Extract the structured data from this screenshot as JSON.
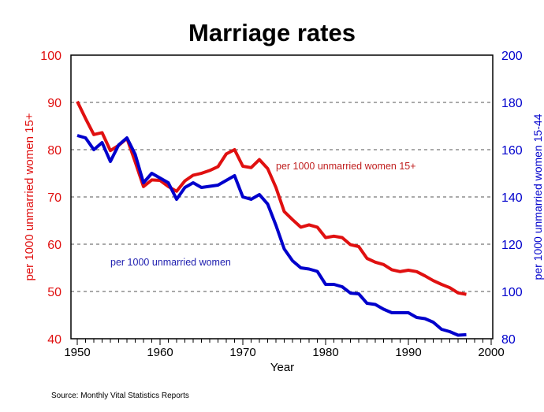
{
  "chart_data": {
    "type": "line",
    "title": "Marriage rates",
    "xlabel": "Year",
    "ylabel_left": "per 1000 unmarried women 15+",
    "ylabel_right": "per 1000 unmarried women 15-44",
    "source": "Source: Monthly Vital Statistics Reports",
    "xlim": [
      1950,
      2000
    ],
    "ylim_left": [
      40,
      100
    ],
    "ylim_right": [
      80,
      200
    ],
    "x_ticks": [
      1950,
      1960,
      1970,
      1980,
      1990,
      2000
    ],
    "y_ticks_left": [
      40,
      50,
      60,
      70,
      80,
      90,
      100
    ],
    "y_ticks_right": [
      80,
      100,
      120,
      140,
      160,
      180,
      200
    ],
    "grid": "horizontal dashed",
    "colors": {
      "left": "#e01010",
      "right": "#0000cc"
    },
    "x": [
      1950,
      1951,
      1952,
      1953,
      1954,
      1955,
      1956,
      1957,
      1958,
      1959,
      1960,
      1961,
      1962,
      1963,
      1964,
      1965,
      1966,
      1967,
      1968,
      1969,
      1970,
      1971,
      1972,
      1973,
      1974,
      1975,
      1976,
      1977,
      1978,
      1979,
      1980,
      1981,
      1982,
      1983,
      1984,
      1985,
      1986,
      1987,
      1988,
      1989,
      1990,
      1991,
      1992,
      1993,
      1994,
      1995,
      1996,
      1997
    ],
    "series": [
      {
        "name": "per 1000 unmarried women 15+",
        "axis": "left",
        "color": "#e01010",
        "values": [
          90.2,
          86.6,
          83.2,
          83.6,
          79.8,
          80.9,
          82.4,
          77.4,
          72.2,
          73.6,
          73.5,
          72.2,
          71.2,
          73.4,
          74.6,
          75.0,
          75.6,
          76.4,
          79.1,
          80.0,
          76.5,
          76.2,
          77.9,
          76.0,
          72.0,
          66.9,
          65.2,
          63.6,
          64.1,
          63.6,
          61.4,
          61.7,
          61.4,
          59.9,
          59.5,
          57.0,
          56.2,
          55.7,
          54.6,
          54.2,
          54.5,
          54.2,
          53.3,
          52.3,
          51.5,
          50.8,
          49.7,
          49.4
        ]
      },
      {
        "name": "per 1000 unmarried women",
        "axis": "right",
        "color": "#0000cc",
        "values": [
          166,
          165,
          160,
          163,
          155,
          162,
          165,
          158,
          146,
          150,
          148,
          146,
          139,
          144,
          146,
          144,
          144.5,
          145,
          147,
          149,
          140,
          139,
          141,
          137,
          128,
          118,
          113,
          110,
          109.5,
          108.5,
          103,
          103,
          102,
          99.3,
          99,
          95,
          94.5,
          92.5,
          91,
          91,
          91,
          89,
          88.5,
          87,
          84,
          83,
          81.5,
          81.7
        ]
      }
    ]
  }
}
